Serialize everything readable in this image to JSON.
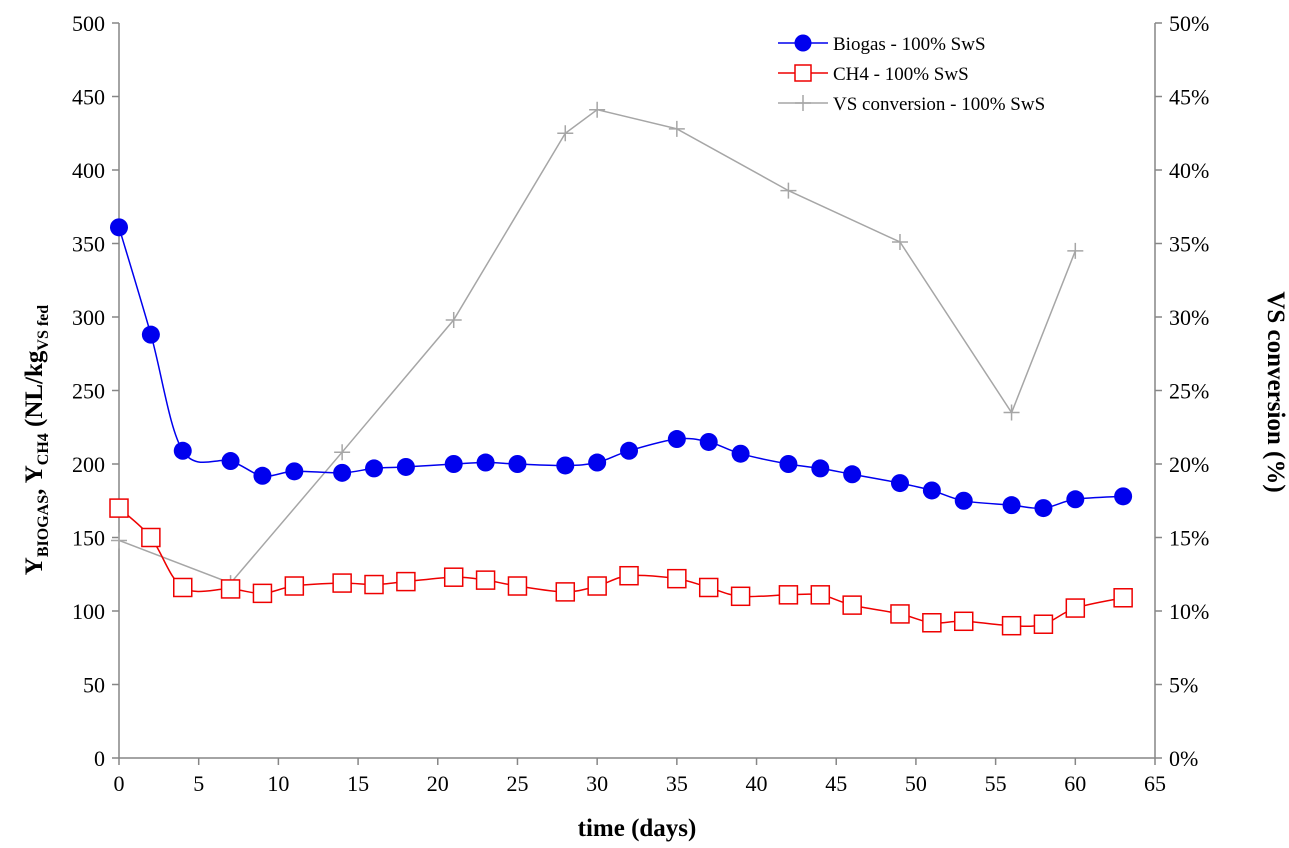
{
  "chart_data": {
    "type": "line",
    "xlabel": "time (days)",
    "ylabel_left": {
      "Y1": "Y",
      "sub1": "BIOGAS",
      "mid": ", Y",
      "sub2": "CH4",
      "unit": " (NL/kg",
      "sub3": "VS fed"
    },
    "ylabel_right": "VS conversion (%)",
    "xlim": [
      0,
      65
    ],
    "ylim_left": [
      0,
      500
    ],
    "ylim_right": [
      0,
      50
    ],
    "x_ticks": [
      0,
      5,
      10,
      15,
      20,
      25,
      30,
      35,
      40,
      45,
      50,
      55,
      60,
      65
    ],
    "x_tick_labels": [
      "0",
      "5",
      "10",
      "15",
      "20",
      "25",
      "30",
      "35",
      "40",
      "45",
      "50",
      "55",
      "60",
      "65"
    ],
    "y_left_ticks": [
      0,
      50,
      100,
      150,
      200,
      250,
      300,
      350,
      400,
      450,
      500
    ],
    "y_left_tick_labels": [
      "0",
      "50",
      "100",
      "150",
      "200",
      "250",
      "300",
      "350",
      "400",
      "450",
      "500"
    ],
    "y_right_ticks": [
      0,
      5,
      10,
      15,
      20,
      25,
      30,
      35,
      40,
      45,
      50
    ],
    "y_right_tick_labels": [
      "0%",
      "5%",
      "10%",
      "15%",
      "20%",
      "25%",
      "30%",
      "35%",
      "40%",
      "45%",
      "50%"
    ],
    "grid": false,
    "legend_position": "top-right",
    "series": [
      {
        "name": "Biogas - 100% SwS",
        "axis": "left",
        "color": "#0000ee",
        "marker": "filled-circle",
        "x": [
          0,
          2,
          4,
          7,
          9,
          11,
          14,
          16,
          18,
          21,
          23,
          25,
          28,
          30,
          32,
          35,
          37,
          39,
          42,
          44,
          46,
          49,
          51,
          53,
          56,
          58,
          60,
          63
        ],
        "y": [
          361,
          288,
          209,
          202,
          192,
          195,
          194,
          197,
          198,
          200,
          201,
          200,
          199,
          201,
          209,
          217,
          215,
          207,
          200,
          197,
          193,
          187,
          182,
          175,
          172,
          170,
          176,
          178
        ]
      },
      {
        "name": "CH4 - 100% SwS",
        "axis": "left",
        "color": "#ee0000",
        "marker": "open-square",
        "x": [
          0,
          2,
          4,
          7,
          9,
          11,
          14,
          16,
          18,
          21,
          23,
          25,
          28,
          30,
          32,
          35,
          37,
          39,
          42,
          44,
          46,
          49,
          51,
          53,
          56,
          58,
          60,
          63
        ],
        "y": [
          170,
          150,
          116,
          115,
          112,
          117,
          119,
          118,
          120,
          123,
          121,
          117,
          113,
          117,
          124,
          122,
          116,
          110,
          111,
          111,
          104,
          98,
          92,
          93,
          90,
          91,
          102,
          109
        ]
      },
      {
        "name": "VS conversion - 100% SwS",
        "axis": "right",
        "color": "#a6a6a6",
        "marker": "plus",
        "x": [
          0,
          7,
          14,
          21,
          28,
          30,
          35,
          42,
          49,
          56,
          60
        ],
        "y": [
          14.8,
          11.9,
          20.8,
          29.8,
          42.5,
          44.1,
          42.8,
          38.6,
          35.1,
          23.5,
          34.5
        ]
      }
    ]
  }
}
